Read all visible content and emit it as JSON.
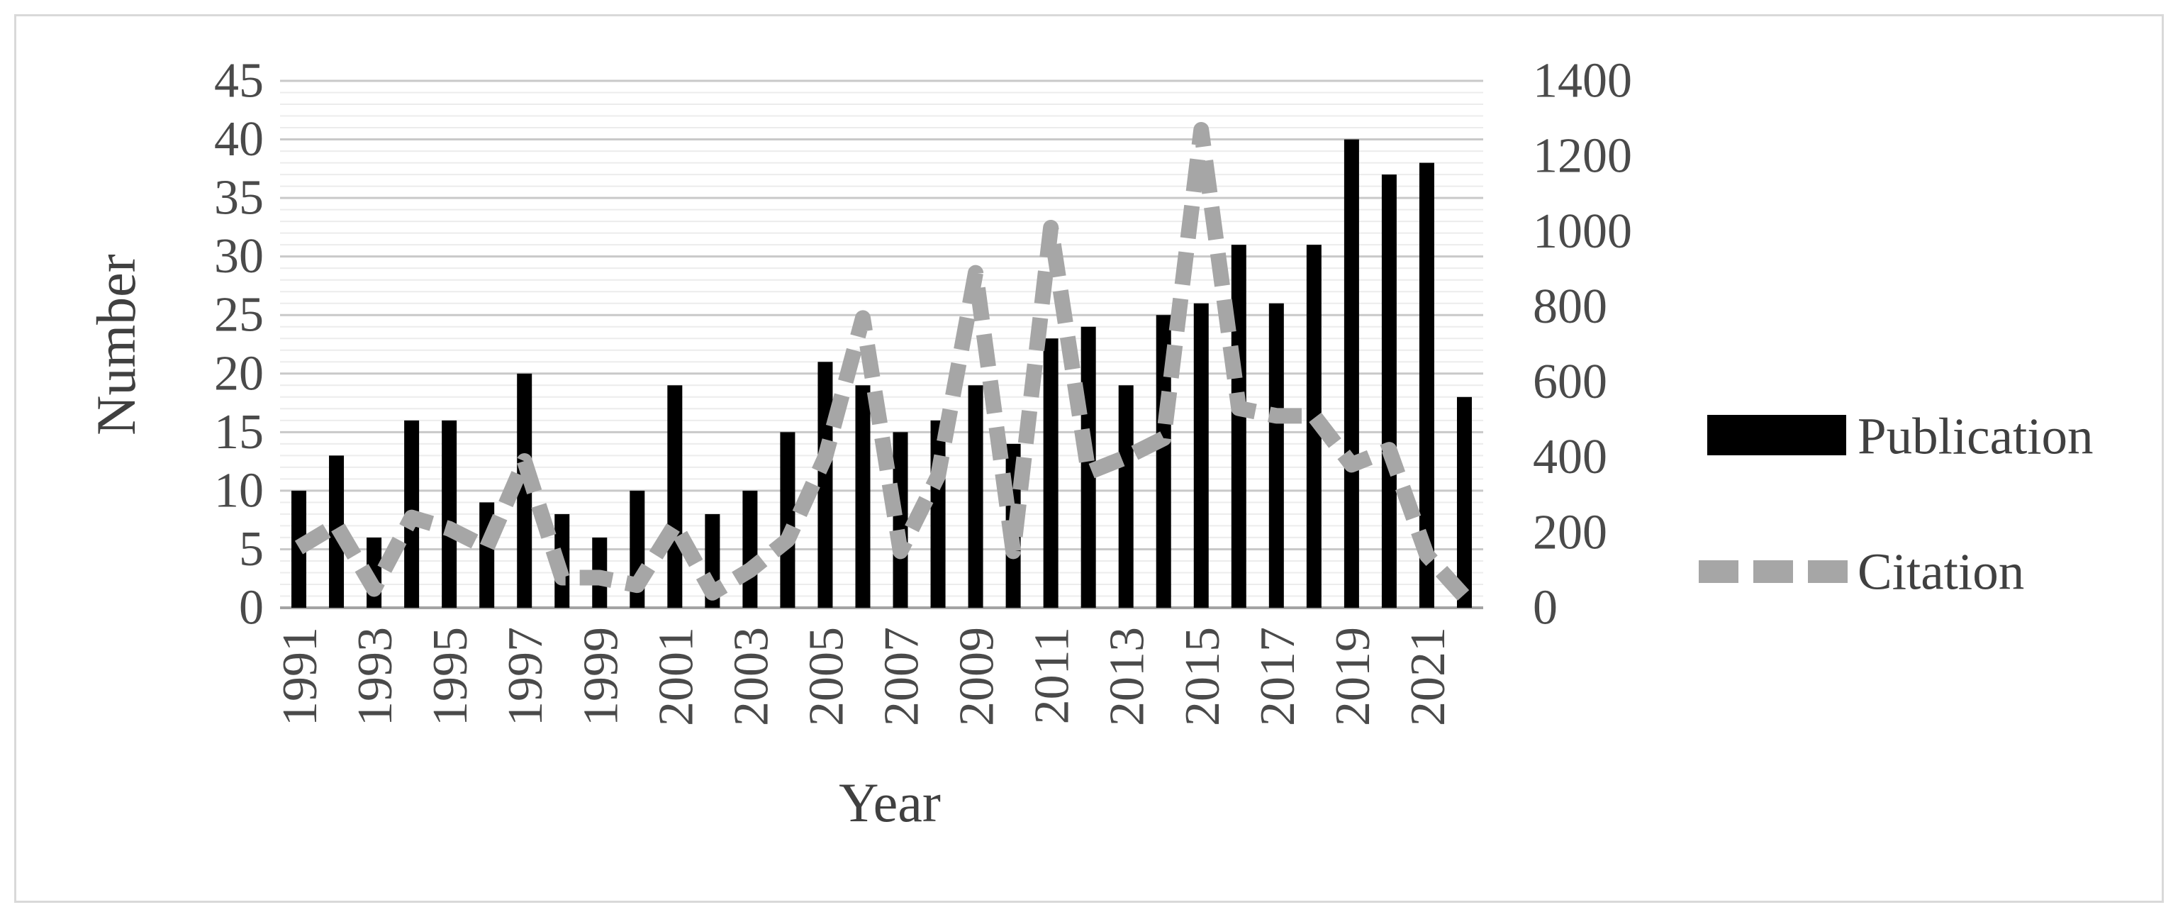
{
  "chart_data": {
    "type": "bar+line",
    "categories": [
      1991,
      1992,
      1993,
      1994,
      1995,
      1996,
      1997,
      1998,
      1999,
      2000,
      2001,
      2002,
      2003,
      2004,
      2005,
      2006,
      2007,
      2008,
      2009,
      2010,
      2011,
      2012,
      2013,
      2014,
      2015,
      2016,
      2017,
      2018,
      2019,
      2020,
      2021,
      2022
    ],
    "series": [
      {
        "name": "Publication",
        "type": "bar",
        "axis": "left",
        "values": [
          10,
          13,
          6,
          16,
          16,
          9,
          20,
          8,
          6,
          10,
          19,
          8,
          10,
          15,
          21,
          19,
          15,
          16,
          19,
          14,
          23,
          24,
          19,
          25,
          26,
          31,
          26,
          31,
          40,
          37,
          38,
          18
        ]
      },
      {
        "name": "Citation",
        "type": "line-dashed",
        "axis": "right",
        "values": [
          160,
          220,
          50,
          240,
          210,
          160,
          390,
          80,
          80,
          60,
          220,
          40,
          100,
          180,
          400,
          770,
          150,
          350,
          890,
          150,
          1010,
          360,
          400,
          450,
          1270,
          530,
          510,
          510,
          380,
          420,
          140,
          30
        ]
      }
    ],
    "left_axis": {
      "title": "Number",
      "min": 0,
      "max": 45,
      "tick_step": 5,
      "ticks": [
        0,
        5,
        10,
        15,
        20,
        25,
        30,
        35,
        40,
        45
      ]
    },
    "right_axis": {
      "min": 0,
      "max": 1400,
      "tick_step": 200,
      "ticks": [
        0,
        200,
        400,
        600,
        800,
        1000,
        1200,
        1400
      ]
    },
    "x_axis": {
      "title": "Year",
      "labels": [
        "1991",
        "1993",
        "1995",
        "1997",
        "1999",
        "2001",
        "2003",
        "2005",
        "2007",
        "2009",
        "2011",
        "2013",
        "2015",
        "2017",
        "2019",
        "2021"
      ]
    },
    "legend": {
      "publication_label": "Publication",
      "citation_label": "Citation"
    },
    "grid": {
      "major": "on",
      "minor": "on",
      "minor_step_left_axis": 1
    },
    "colors": {
      "publication_bar": "#000000",
      "citation_line": "#a6a6a6",
      "text": "#404040",
      "gridline_major": "#c9c9c9",
      "gridline_minor": "#ececec",
      "figure_border": "#d9d9d9"
    }
  }
}
